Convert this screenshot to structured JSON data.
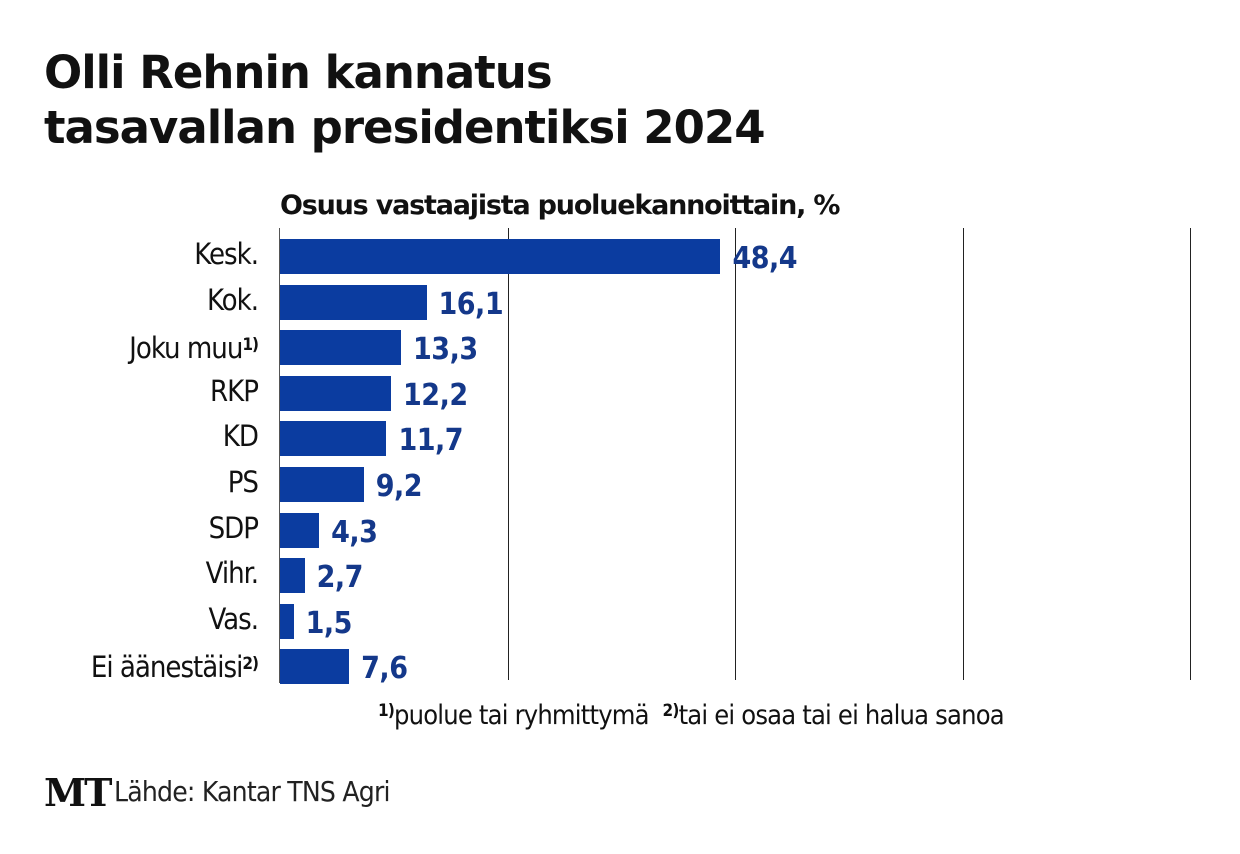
{
  "title_line1": "Olli Rehnin kannatus",
  "title_line2": "tasavallan presidentiksi 2024",
  "chart_data": {
    "type": "bar",
    "orientation": "horizontal",
    "subtitle": "Osuus vastaajista puoluekannoittain, %",
    "categories": [
      "Kesk.",
      "Kok.",
      "Joku muu",
      "RKP",
      "KD",
      "PS",
      "SDP",
      "Vihr.",
      "Vas.",
      "Ei äänestäisi"
    ],
    "category_footnotes": [
      "",
      "",
      "1)",
      "",
      "",
      "",
      "",
      "",
      "",
      "2)"
    ],
    "values": [
      48.4,
      16.1,
      13.3,
      12.2,
      11.7,
      9.2,
      4.3,
      2.7,
      1.5,
      7.6
    ],
    "value_labels": [
      "48,4",
      "16,1",
      "13,3",
      "12,2",
      "11,7",
      "9,2",
      "4,3",
      "2,7",
      "1,5",
      "7,6"
    ],
    "xlim": [
      0,
      100
    ],
    "gridlines": [
      25,
      50,
      75,
      100
    ],
    "grid": true,
    "bar_color": "#0b3ca0",
    "label_color": "#14388a"
  },
  "footnotes": [
    {
      "marker": "1)",
      "text": "puolue tai ryhmittymä"
    },
    {
      "marker": "2)",
      "text": "tai ei osaa tai ei halua sanoa"
    }
  ],
  "logo": "MT",
  "source": "Lähde: Kantar TNS Agri"
}
